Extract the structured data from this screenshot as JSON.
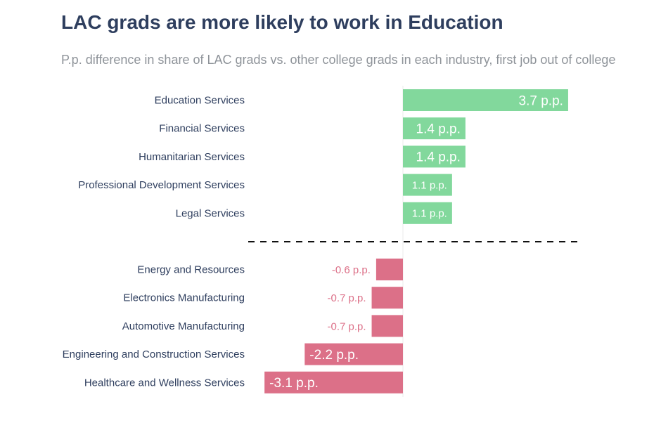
{
  "chart_data": {
    "type": "bar",
    "orientation": "horizontal",
    "title": "LAC grads are more likely to work in Education",
    "subtitle": "P.p. difference in share of LAC grads vs. other college grads in each industry, first job out of college",
    "unit_suffix": " p.p.",
    "positive_color": "#82d89c",
    "negative_color": "#dc7088",
    "categories": [
      "Education Services",
      "Financial Services",
      "Humanitarian Services",
      "Professional Development Services",
      "Legal Services",
      "Energy and Resources",
      "Electronics Manufacturing",
      "Automotive Manufacturing",
      "Engineering and Construction Services",
      "Healthcare and Wellness Services"
    ],
    "values": [
      3.7,
      1.4,
      1.4,
      1.1,
      1.1,
      -0.6,
      -0.7,
      -0.7,
      -2.2,
      -3.1
    ],
    "labels": [
      "3.7 p.p.",
      "1.4 p.p.",
      "1.4 p.p.",
      "1.1 p.p.",
      "1.1 p.p.",
      "-0.6 p.p.",
      "-0.7 p.p.",
      "-0.7 p.p.",
      "-2.2 p.p.",
      "-3.1 p.p."
    ],
    "divider": "dashed line between positive and negative groups"
  }
}
